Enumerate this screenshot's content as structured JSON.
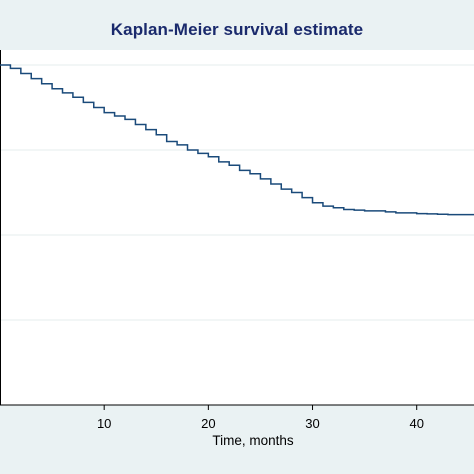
{
  "colors": {
    "background": "#eaf2f3",
    "plot_background": "#ffffff",
    "title": "#1a2a6c",
    "line": "#1a4a7a",
    "grid": "#e6ecee",
    "axis": "#000000"
  },
  "chart_data": {
    "type": "line",
    "title": "Kaplan-Meier survival estimate",
    "xlabel": "Time, months",
    "ylabel": "",
    "xlim": [
      0,
      45.5
    ],
    "ylim": [
      0,
      1
    ],
    "x_ticks": [
      10,
      20,
      30,
      40
    ],
    "grid": true,
    "step": true,
    "series": [
      {
        "x": [
          0,
          1,
          2,
          3,
          4,
          5,
          6,
          7,
          8,
          9,
          10,
          11,
          12,
          13,
          14,
          15,
          16,
          17,
          18,
          19,
          20,
          21,
          22,
          23,
          24,
          25,
          26,
          27,
          28,
          29,
          30,
          31,
          32,
          33,
          34,
          35,
          36,
          37,
          38,
          39,
          40,
          41,
          42,
          43,
          44,
          45.5
        ],
        "y": [
          1.0,
          0.99,
          0.975,
          0.96,
          0.945,
          0.93,
          0.918,
          0.905,
          0.89,
          0.875,
          0.86,
          0.85,
          0.84,
          0.825,
          0.81,
          0.795,
          0.775,
          0.765,
          0.75,
          0.74,
          0.73,
          0.715,
          0.705,
          0.69,
          0.68,
          0.665,
          0.65,
          0.635,
          0.625,
          0.61,
          0.595,
          0.585,
          0.58,
          0.575,
          0.573,
          0.571,
          0.571,
          0.568,
          0.565,
          0.565,
          0.563,
          0.562,
          0.561,
          0.56,
          0.56,
          0.56
        ]
      }
    ]
  }
}
